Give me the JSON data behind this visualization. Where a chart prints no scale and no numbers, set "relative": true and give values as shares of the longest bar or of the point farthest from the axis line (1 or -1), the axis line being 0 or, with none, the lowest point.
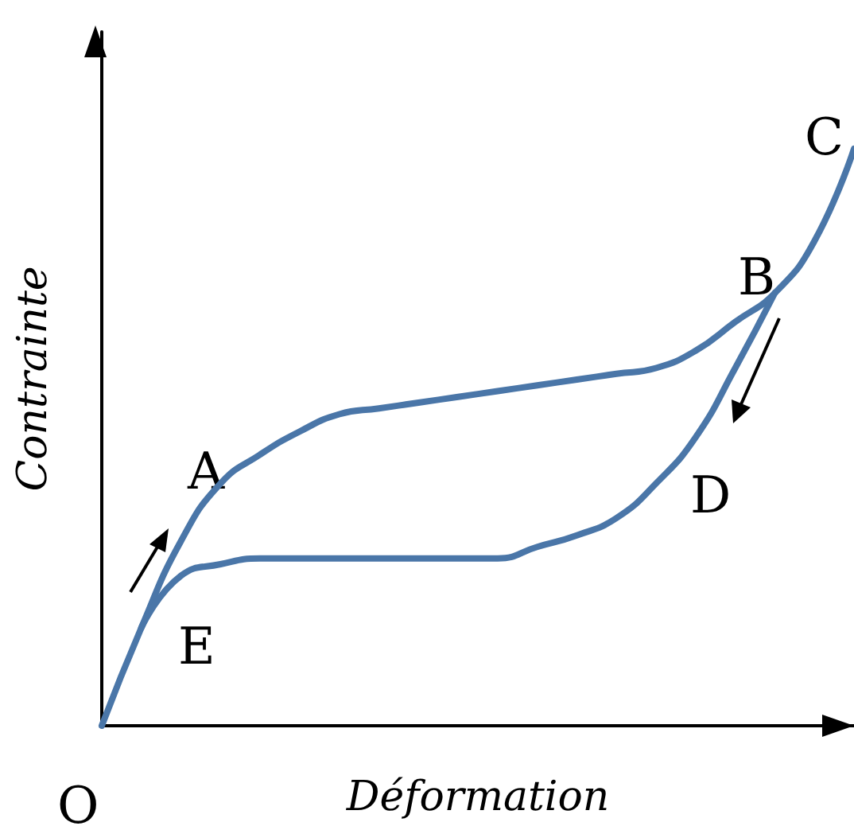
{
  "chart_data": {
    "type": "line",
    "relative": true,
    "xlabel": "Déformation",
    "ylabel": "Contrainte",
    "categories": [
      null,
      null,
      null,
      null,
      null,
      null,
      null,
      null,
      null,
      null,
      null,
      null,
      null,
      null,
      null,
      null,
      null,
      null,
      null,
      null
    ],
    "series": [
      {
        "color": "#4a76a8",
        "values": [
          0,
          0.17,
          0.32,
          0.42,
          0.47,
          0.51,
          0.54,
          0.55,
          0.56,
          0.57,
          0.58,
          0.59,
          0.6,
          0.61,
          0.62,
          0.65,
          0.7,
          0.75,
          0.84,
          1
        ]
      },
      {
        "color": "#4a76a8",
        "values": [
          null,
          0.17,
          0.26,
          0.28,
          0.29,
          0.29,
          0.29,
          0.29,
          0.29,
          0.29,
          0.29,
          0.31,
          0.33,
          0.36,
          0.42,
          0.5,
          0.62,
          0.75,
          null,
          null
        ]
      }
    ],
    "annotations": [
      "O",
      "A",
      "B",
      "C",
      "D",
      "E"
    ]
  }
}
